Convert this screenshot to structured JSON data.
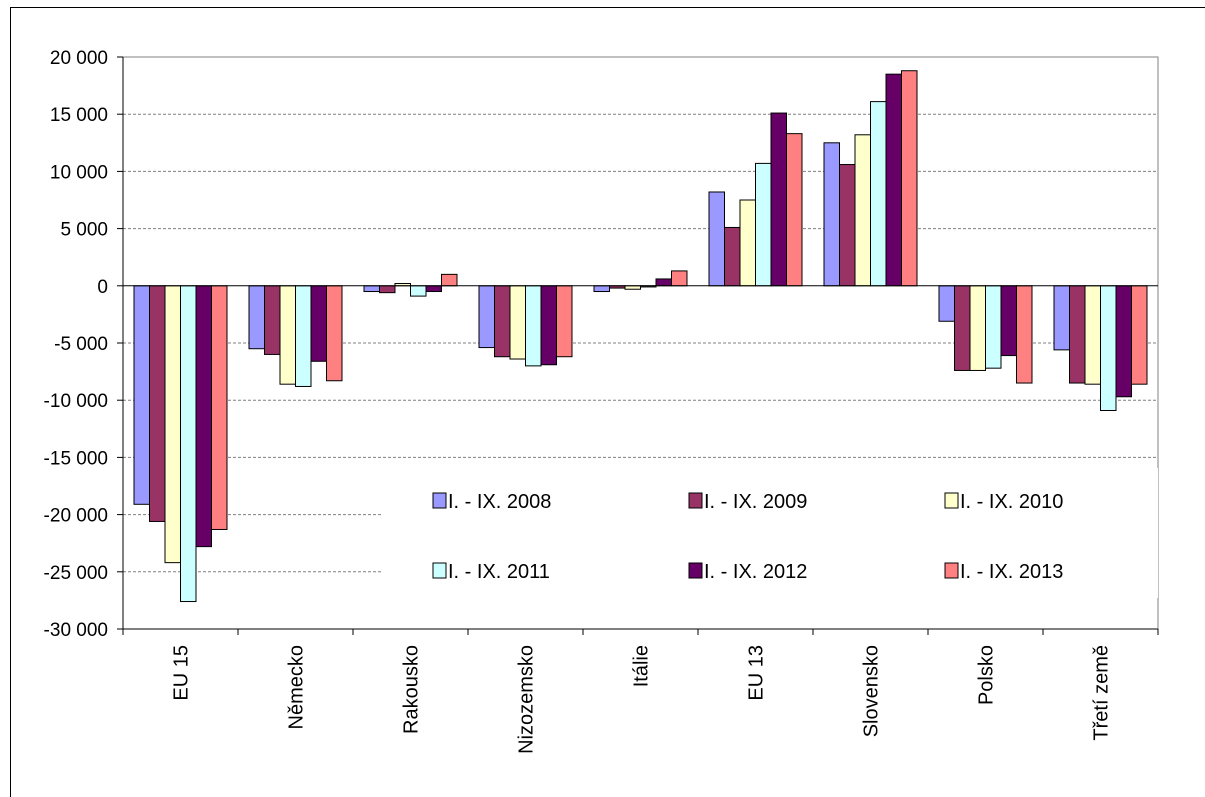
{
  "chart_data": {
    "type": "bar",
    "categories": [
      "EU 15",
      "Německo",
      "Rakousko",
      "Nizozemsko",
      "Itálie",
      "EU 13",
      "Slovensko",
      "Polsko",
      "Třetí země"
    ],
    "series": [
      {
        "name": "I. - IX. 2008",
        "color": "#9999ff",
        "values": [
          -19100,
          -5500,
          -500,
          -5400,
          -500,
          8200,
          12500,
          -3100,
          -5600
        ]
      },
      {
        "name": "I. - IX. 2009",
        "color": "#993366",
        "values": [
          -20600,
          -6000,
          -600,
          -6200,
          -200,
          5100,
          10600,
          -7400,
          -8500
        ]
      },
      {
        "name": "I. - IX. 2010",
        "color": "#ffffcc",
        "values": [
          -24200,
          -8600,
          200,
          -6400,
          -300,
          7500,
          13200,
          -7400,
          -8600
        ]
      },
      {
        "name": "I. - IX. 2011",
        "color": "#ccffff",
        "values": [
          -27600,
          -8800,
          -900,
          -7000,
          -100,
          10700,
          16100,
          -7200,
          -10900
        ]
      },
      {
        "name": "I. - IX. 2012",
        "color": "#660066",
        "values": [
          -22800,
          -6600,
          -500,
          -6900,
          600,
          15100,
          18500,
          -6100,
          -9700
        ]
      },
      {
        "name": "I. - IX. 2013",
        "color": "#ff8080",
        "values": [
          -21300,
          -8300,
          1000,
          -6200,
          1300,
          13300,
          18800,
          -8500,
          -8600
        ]
      }
    ],
    "yticks": [
      "20 000",
      "15 000",
      "10 000",
      "5 000",
      "0",
      "-5 000",
      "-10 000",
      "-15 000",
      "-20 000",
      "-25 000",
      "-30 000"
    ],
    "ylim": [
      -30000,
      20000
    ],
    "grid": true,
    "legend_position": "inside-bottom-right"
  }
}
